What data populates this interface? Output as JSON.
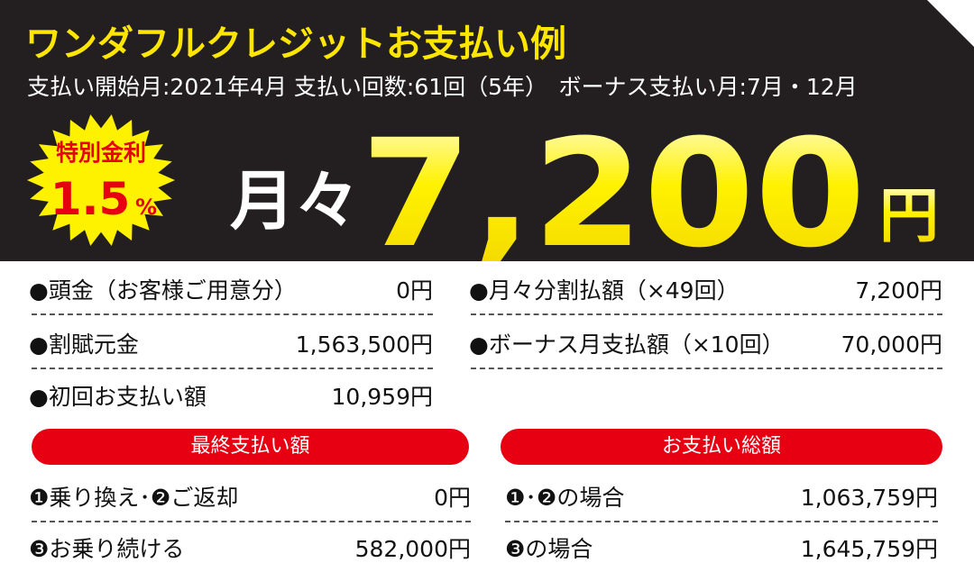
{
  "header": {
    "title": "ワンダフルクレジットお支払い例",
    "subtitle": "支払い開始月:2021年4月 支払い回数:61回（5年）　ボーナス支払い月:7月・12月"
  },
  "badge": {
    "label": "特別金利",
    "rate": "1.5",
    "unit": "%"
  },
  "monthly": {
    "prefix": "月々",
    "amount": "7,200",
    "unit": "円"
  },
  "details": {
    "left": [
      [
        "●頭金（お客様ご用意分）",
        "0円"
      ],
      [
        "●割賦元金",
        "1,563,500円"
      ],
      [
        "●初回お支払い額",
        "10,959円"
      ]
    ],
    "right": [
      [
        "●月々分割払額（×49回）",
        "7,200円"
      ],
      [
        "●ボーナス月支払額（×10回）",
        "70,000円"
      ]
    ]
  },
  "final_payment": {
    "title": "最終支払い額",
    "rows": [
      [
        "❶乗り換え･❷ご返却",
        "0円"
      ],
      [
        "❸お乗り続ける",
        "582,000円"
      ]
    ]
  },
  "total_payment": {
    "title": "お支払い総額",
    "rows": [
      [
        "❶･❷の場合",
        "1,063,759円"
      ],
      [
        "❸の場合",
        "1,645,759円"
      ]
    ]
  }
}
